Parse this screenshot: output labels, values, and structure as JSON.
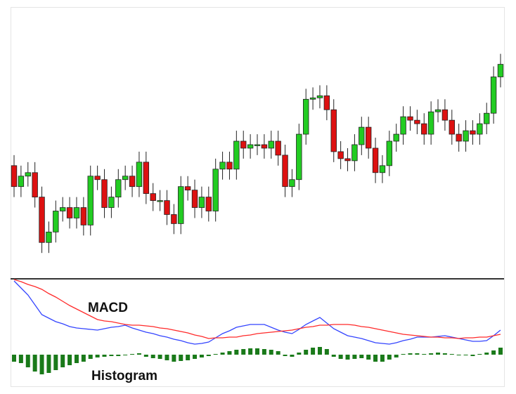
{
  "chart_data": [
    {
      "type": "candlestick",
      "up_color": "#22cc22",
      "down_color": "#dd1111",
      "ylim": [
        5,
        390
      ],
      "open": [
        165,
        135,
        150,
        155,
        120,
        55,
        70,
        100,
        105,
        90,
        105,
        80,
        150,
        145,
        105,
        120,
        145,
        150,
        135,
        170,
        125,
        115,
        115,
        95,
        82,
        135,
        130,
        105,
        120,
        100,
        160,
        170,
        160,
        200,
        190,
        195,
        195,
        190,
        200,
        180,
        135,
        145,
        210,
        260,
        262,
        265,
        245,
        185,
        175,
        172,
        195,
        220,
        190,
        155,
        165,
        200,
        210,
        235,
        230,
        225,
        210,
        242,
        245,
        230,
        210,
        200,
        215,
        210,
        225,
        240,
        292
      ],
      "high": [
        180,
        165,
        170,
        170,
        135,
        85,
        115,
        120,
        120,
        120,
        120,
        165,
        165,
        160,
        135,
        160,
        165,
        165,
        185,
        185,
        140,
        130,
        130,
        110,
        150,
        150,
        145,
        135,
        135,
        175,
        185,
        185,
        215,
        215,
        210,
        210,
        210,
        215,
        215,
        195,
        160,
        225,
        275,
        277,
        280,
        280,
        260,
        200,
        190,
        210,
        235,
        235,
        205,
        180,
        215,
        225,
        250,
        250,
        245,
        240,
        257,
        260,
        260,
        245,
        225,
        230,
        230,
        240,
        255,
        307,
        325
      ],
      "low": [
        120,
        120,
        135,
        105,
        40,
        40,
        55,
        85,
        75,
        75,
        65,
        65,
        130,
        90,
        90,
        105,
        130,
        120,
        120,
        110,
        100,
        100,
        80,
        67,
        67,
        115,
        90,
        90,
        85,
        85,
        145,
        145,
        145,
        175,
        175,
        180,
        175,
        175,
        165,
        120,
        120,
        130,
        195,
        245,
        247,
        230,
        170,
        160,
        157,
        157,
        180,
        175,
        140,
        140,
        150,
        185,
        195,
        215,
        210,
        195,
        195,
        227,
        215,
        195,
        185,
        185,
        195,
        195,
        210,
        225,
        277
      ],
      "close": [
        135,
        150,
        155,
        120,
        55,
        70,
        100,
        105,
        90,
        105,
        80,
        150,
        145,
        105,
        120,
        145,
        150,
        135,
        170,
        125,
        115,
        115,
        95,
        82,
        135,
        130,
        105,
        120,
        100,
        160,
        170,
        160,
        200,
        190,
        195,
        195,
        190,
        200,
        180,
        135,
        145,
        210,
        260,
        262,
        265,
        245,
        185,
        175,
        172,
        195,
        220,
        190,
        155,
        165,
        200,
        210,
        235,
        230,
        225,
        210,
        242,
        245,
        230,
        210,
        200,
        215,
        210,
        225,
        240,
        292,
        310
      ]
    },
    {
      "type": "macd",
      "ylim": [
        -45,
        107
      ],
      "series": [
        {
          "name": "MACD",
          "type": "line",
          "color": "#3344ff",
          "values": [
            105,
            95,
            85,
            71,
            57,
            52,
            47,
            44,
            40,
            38,
            37,
            36,
            35,
            37,
            39,
            40,
            42,
            38,
            35,
            32,
            30,
            27,
            25,
            22,
            20,
            17,
            15,
            16,
            18,
            24,
            30,
            34,
            39,
            41,
            43,
            43,
            43,
            39,
            35,
            32,
            30,
            36,
            43,
            48,
            53,
            45,
            37,
            32,
            27,
            25,
            23,
            20,
            17,
            16,
            15,
            17,
            20,
            22,
            25,
            25,
            25,
            26,
            27,
            25,
            23,
            21,
            19,
            19,
            20,
            27,
            35
          ]
        },
        {
          "type": "line",
          "color": "#ff2a2a",
          "values": [
            107,
            104,
            100,
            97,
            93,
            87,
            82,
            76,
            70,
            65,
            60,
            55,
            50,
            48,
            47,
            45,
            43,
            42,
            42,
            41,
            40,
            38,
            37,
            35,
            33,
            31,
            28,
            26,
            23,
            24,
            24,
            25,
            25,
            27,
            28,
            30,
            31,
            32,
            33,
            34,
            35,
            37,
            39,
            40,
            42,
            42,
            43,
            43,
            43,
            42,
            40,
            39,
            37,
            35,
            33,
            31,
            29,
            28,
            27,
            26,
            25,
            25,
            24,
            24,
            23,
            24,
            24,
            25,
            25,
            27,
            29
          ]
        },
        {
          "name": "Histogram",
          "type": "bar",
          "color": "#1a7a1a",
          "values": [
            -10,
            -12,
            -18,
            -24,
            -28,
            -26,
            -22,
            -18,
            -15,
            -12,
            -10,
            -6,
            -4,
            -3,
            -2,
            -2,
            -1,
            1,
            2,
            -3,
            -5,
            -6,
            -8,
            -10,
            -9,
            -8,
            -6,
            -4,
            -2,
            1,
            3,
            5,
            7,
            8,
            9,
            9,
            8,
            7,
            5,
            -2,
            -3,
            3,
            7,
            10,
            11,
            8,
            -3,
            -6,
            -7,
            -6,
            -5,
            -7,
            -10,
            -10,
            -7,
            -4,
            1,
            2,
            2,
            1,
            2,
            3,
            2,
            1,
            -1,
            -1,
            -2,
            1,
            3,
            6,
            10
          ]
        }
      ]
    }
  ]
}
